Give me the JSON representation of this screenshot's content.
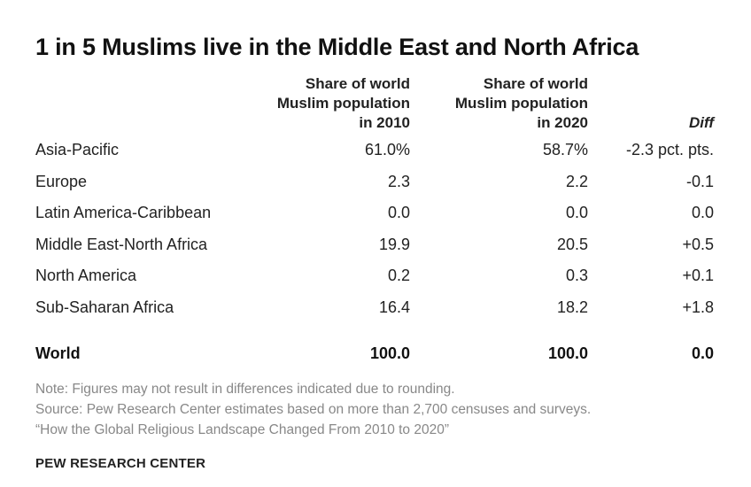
{
  "title": "1 in 5 Muslims live in the Middle East and North Africa",
  "columns": {
    "col2010": [
      "Share of world",
      "Muslim population",
      "in 2010"
    ],
    "col2020": [
      "Share of world",
      "Muslim population",
      "in 2020"
    ],
    "diff": "Diff"
  },
  "rows": [
    {
      "region": "Asia-Pacific",
      "v2010": "61.0%",
      "v2020": "58.7%",
      "diff": "-2.3 pct. pts."
    },
    {
      "region": "Europe",
      "v2010": "2.3",
      "v2020": "2.2",
      "diff": "-0.1"
    },
    {
      "region": "Latin America-Caribbean",
      "v2010": "0.0",
      "v2020": "0.0",
      "diff": "0.0"
    },
    {
      "region": "Middle East-North Africa",
      "v2010": "19.9",
      "v2020": "20.5",
      "diff": "+0.5"
    },
    {
      "region": "North America",
      "v2010": "0.2",
      "v2020": "0.3",
      "diff": "+0.1"
    },
    {
      "region": "Sub-Saharan Africa",
      "v2010": "16.4",
      "v2020": "18.2",
      "diff": "+1.8"
    }
  ],
  "total": {
    "region": "World",
    "v2010": "100.0",
    "v2020": "100.0",
    "diff": "0.0"
  },
  "notes": {
    "note": "Note: Figures may not result in differences indicated due to rounding.",
    "source": "Source: Pew Research Center estimates based on more than 2,700 censuses and surveys.",
    "report": "“How the Global Religious Landscape Changed From 2010 to 2020”"
  },
  "brand": "PEW RESEARCH CENTER",
  "chart_data": {
    "type": "table",
    "title": "1 in 5 Muslims live in the Middle East and North Africa",
    "columns": [
      "Share of world Muslim population in 2010",
      "Share of world Muslim population in 2020",
      "Diff"
    ],
    "categories": [
      "Asia-Pacific",
      "Europe",
      "Latin America-Caribbean",
      "Middle East-North Africa",
      "North America",
      "Sub-Saharan Africa",
      "World"
    ],
    "series": [
      {
        "name": "Share of world Muslim population in 2010",
        "values": [
          61.0,
          2.3,
          0.0,
          19.9,
          0.2,
          16.4,
          100.0
        ]
      },
      {
        "name": "Share of world Muslim population in 2020",
        "values": [
          58.7,
          2.2,
          0.0,
          20.5,
          0.3,
          18.2,
          100.0
        ]
      },
      {
        "name": "Diff",
        "values": [
          -2.3,
          -0.1,
          0.0,
          0.5,
          0.1,
          1.8,
          0.0
        ]
      }
    ]
  }
}
